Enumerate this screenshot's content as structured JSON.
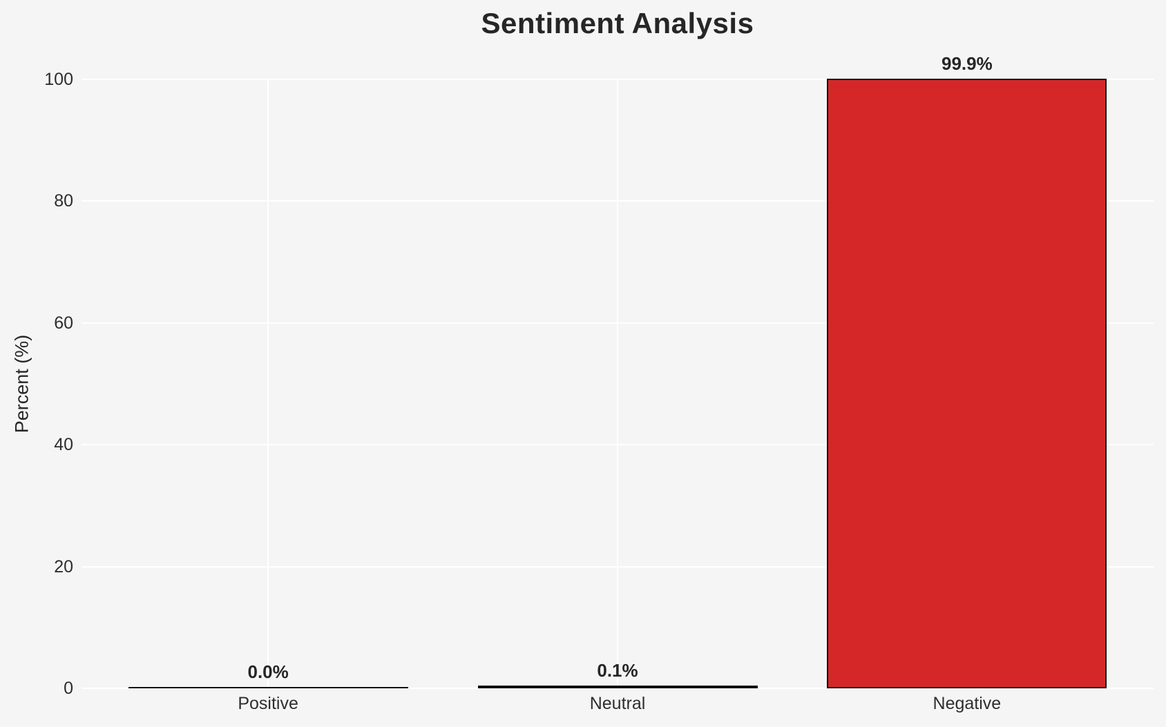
{
  "chart_data": {
    "type": "bar",
    "title": "Sentiment Analysis",
    "ylabel": "Percent (%)",
    "xlabel": "",
    "categories": [
      "Positive",
      "Neutral",
      "Negative"
    ],
    "values": [
      0.0,
      0.1,
      99.9
    ],
    "value_labels": [
      "0.0%",
      "0.1%",
      "99.9%"
    ],
    "yticks": [
      0,
      20,
      40,
      60,
      80,
      100
    ],
    "ylim": [
      0,
      100
    ],
    "grid": true,
    "legend_position": "none",
    "colors": {
      "bar_fill": "#d62728",
      "bar_edge": "#0a0a0a",
      "background": "#f5f5f6",
      "gridline": "#ffffff",
      "text": "#262626"
    }
  }
}
